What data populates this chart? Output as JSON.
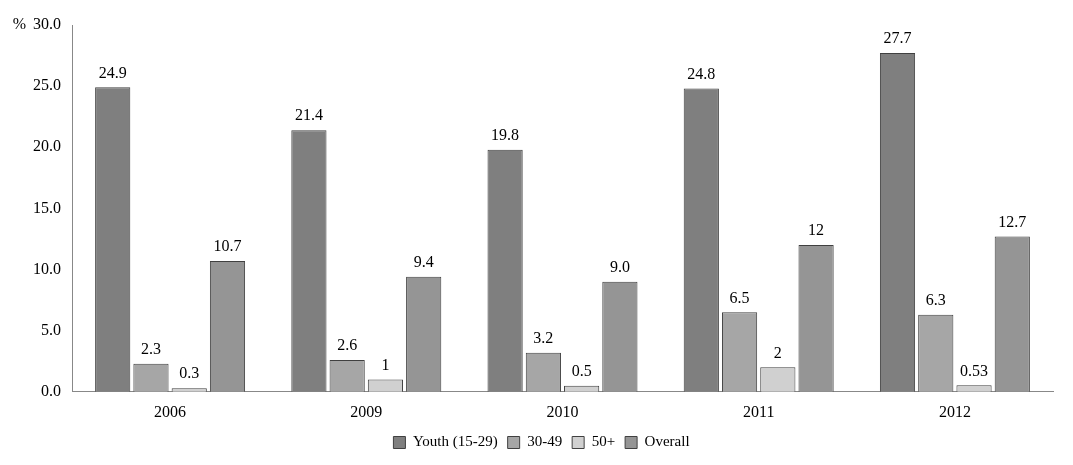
{
  "chart_data": {
    "type": "bar",
    "ylabel": "%",
    "categories": [
      "2006",
      "2009",
      "2010",
      "2011",
      "2012"
    ],
    "series": [
      {
        "name": "Youth (15-29)",
        "color": "#7f7f7f",
        "values": [
          24.9,
          21.4,
          19.8,
          24.8,
          27.7
        ],
        "value_labels": [
          "24.9",
          "21.4",
          "19.8",
          "24.8",
          "27.7"
        ]
      },
      {
        "name": "30-49",
        "color": "#a6a6a6",
        "values": [
          2.3,
          2.6,
          3.2,
          6.5,
          6.3
        ],
        "value_labels": [
          "2.3",
          "2.6",
          "3.2",
          "6.5",
          "6.3"
        ]
      },
      {
        "name": "50+",
        "color": "#d0d0d0",
        "values": [
          0.3,
          1,
          0.5,
          2,
          0.53
        ],
        "value_labels": [
          "0.3",
          "1",
          "0.5",
          "2",
          "0.53"
        ]
      },
      {
        "name": "Overall",
        "color": "#959595",
        "values": [
          10.7,
          9.4,
          9.0,
          12,
          12.7
        ],
        "value_labels": [
          "10.7",
          "9.4",
          "9.0",
          "12",
          "12.7"
        ]
      }
    ],
    "ylim": [
      0,
      30
    ],
    "yticks": [
      {
        "value": 0,
        "label": "0.0"
      },
      {
        "value": 5,
        "label": "5.0"
      },
      {
        "value": 10,
        "label": "10.0"
      },
      {
        "value": 15,
        "label": "15.0"
      },
      {
        "value": 20,
        "label": "20.0"
      },
      {
        "value": 25,
        "label": "25.0"
      },
      {
        "value": 30,
        "label": "30.0"
      }
    ],
    "grid": false,
    "legend": "bottom"
  }
}
